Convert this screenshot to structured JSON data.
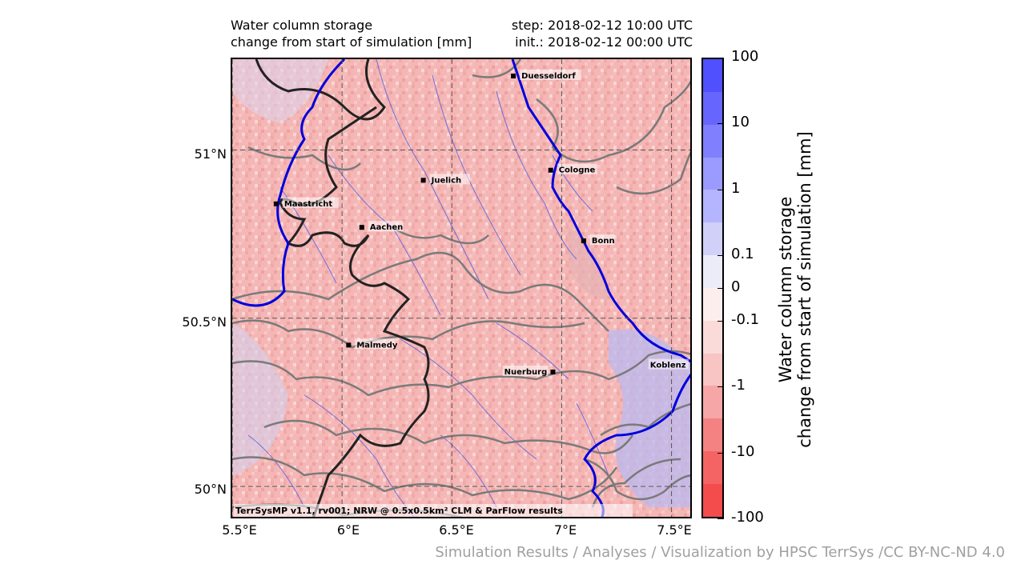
{
  "title": {
    "left_line1": "Water column storage",
    "left_line2": "change from start of simulation [mm]",
    "right_line1": "step: 2018-02-12 10:00 UTC",
    "right_line2": "init.: 2018-02-12 00:00 UTC"
  },
  "map": {
    "lon_range": [
      5.5,
      7.6
    ],
    "lat_range": [
      49.9,
      51.27
    ],
    "lat_ticks": [
      {
        "value": 51.0,
        "label": "51°N"
      },
      {
        "value": 50.5,
        "label": "50.5°N"
      },
      {
        "value": 50.0,
        "label": "50°N"
      }
    ],
    "lon_ticks": [
      {
        "value": 5.5,
        "label": "5.5°E"
      },
      {
        "value": 6.0,
        "label": "6°E"
      },
      {
        "value": 6.5,
        "label": "6.5°E"
      },
      {
        "value": 7.0,
        "label": "7°E"
      },
      {
        "value": 7.5,
        "label": "7.5°E"
      }
    ],
    "grid": true,
    "cities": [
      {
        "name": "Duesseldorf",
        "lon": 6.78,
        "lat": 51.22,
        "label_side": "right"
      },
      {
        "name": "Cologne",
        "lon": 6.95,
        "lat": 50.94,
        "label_side": "right"
      },
      {
        "name": "Juelich",
        "lon": 6.37,
        "lat": 50.91,
        "label_side": "right"
      },
      {
        "name": "Maastricht",
        "lon": 5.7,
        "lat": 50.84,
        "label_side": "right"
      },
      {
        "name": "Aachen",
        "lon": 6.09,
        "lat": 50.77,
        "label_side": "right"
      },
      {
        "name": "Bonn",
        "lon": 7.1,
        "lat": 50.73,
        "label_side": "right"
      },
      {
        "name": "Malmedy",
        "lon": 6.03,
        "lat": 50.42,
        "label_side": "right"
      },
      {
        "name": "Nuerburg",
        "lon": 6.96,
        "lat": 50.34,
        "label_side": "left"
      },
      {
        "name": "Koblenz",
        "lon": 7.6,
        "lat": 50.36,
        "label_side": "left"
      }
    ],
    "credit": "TerrSysMP v1.1, rv001; NRW @ 0.5x0.5km² CLM & ParFlow results",
    "colors": {
      "background_dry": "#f4b7b5",
      "river": "#0000dd",
      "border": "#222222",
      "contour": "#7a7a7a",
      "grid": "#555555"
    }
  },
  "colorbar": {
    "title_line1": "Water column storage",
    "title_line2": "change from start of simulation [mm]",
    "segments": [
      "#5050ff",
      "#6666ff",
      "#8080ff",
      "#9a9aff",
      "#b4b4ff",
      "#d0d0f8",
      "#ececf8",
      "#fdeeee",
      "#fbdada",
      "#f8c4c4",
      "#f6a6a6",
      "#f48282",
      "#f46464",
      "#f44c4c"
    ],
    "labels": [
      {
        "text": "100",
        "frac": 0.0
      },
      {
        "text": "10",
        "frac": 0.1429
      },
      {
        "text": "1",
        "frac": 0.2857
      },
      {
        "text": "0.1",
        "frac": 0.4286
      },
      {
        "text": "0",
        "frac": 0.5
      },
      {
        "text": "-0.1",
        "frac": 0.5714
      },
      {
        "text": "-1",
        "frac": 0.7143
      },
      {
        "text": "-10",
        "frac": 0.8571
      },
      {
        "text": "-100",
        "frac": 1.0
      }
    ]
  },
  "footer": "Simulation Results / Analyses / Visualization by HPSC TerrSys /CC BY-NC-ND 4.0"
}
